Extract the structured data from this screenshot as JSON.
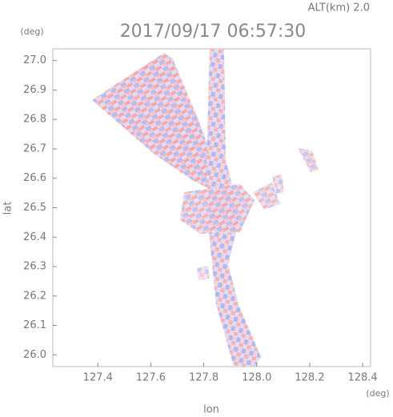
{
  "chart_data": {
    "type": "heatmap",
    "title": "2017/09/17 06:57:30",
    "subtitle": "ALT(km) 2.0",
    "x_label": "lon",
    "y_label": "lat",
    "x_unit": "(deg)",
    "y_unit": "(deg)",
    "xlim": [
      127.23,
      128.43
    ],
    "ylim": [
      25.96,
      27.04
    ],
    "xticks": [
      127.4,
      127.6,
      127.8,
      {
        "value": 128,
        "label": "128.0"
      },
      128.2,
      128.4
    ],
    "yticks": [
      {
        "value": 26,
        "label": "26.0"
      },
      26.1,
      26.2,
      26.3,
      26.4,
      26.5,
      26.6,
      26.7,
      26.8,
      26.9,
      {
        "value": 27,
        "label": "27.0"
      }
    ]
  }
}
